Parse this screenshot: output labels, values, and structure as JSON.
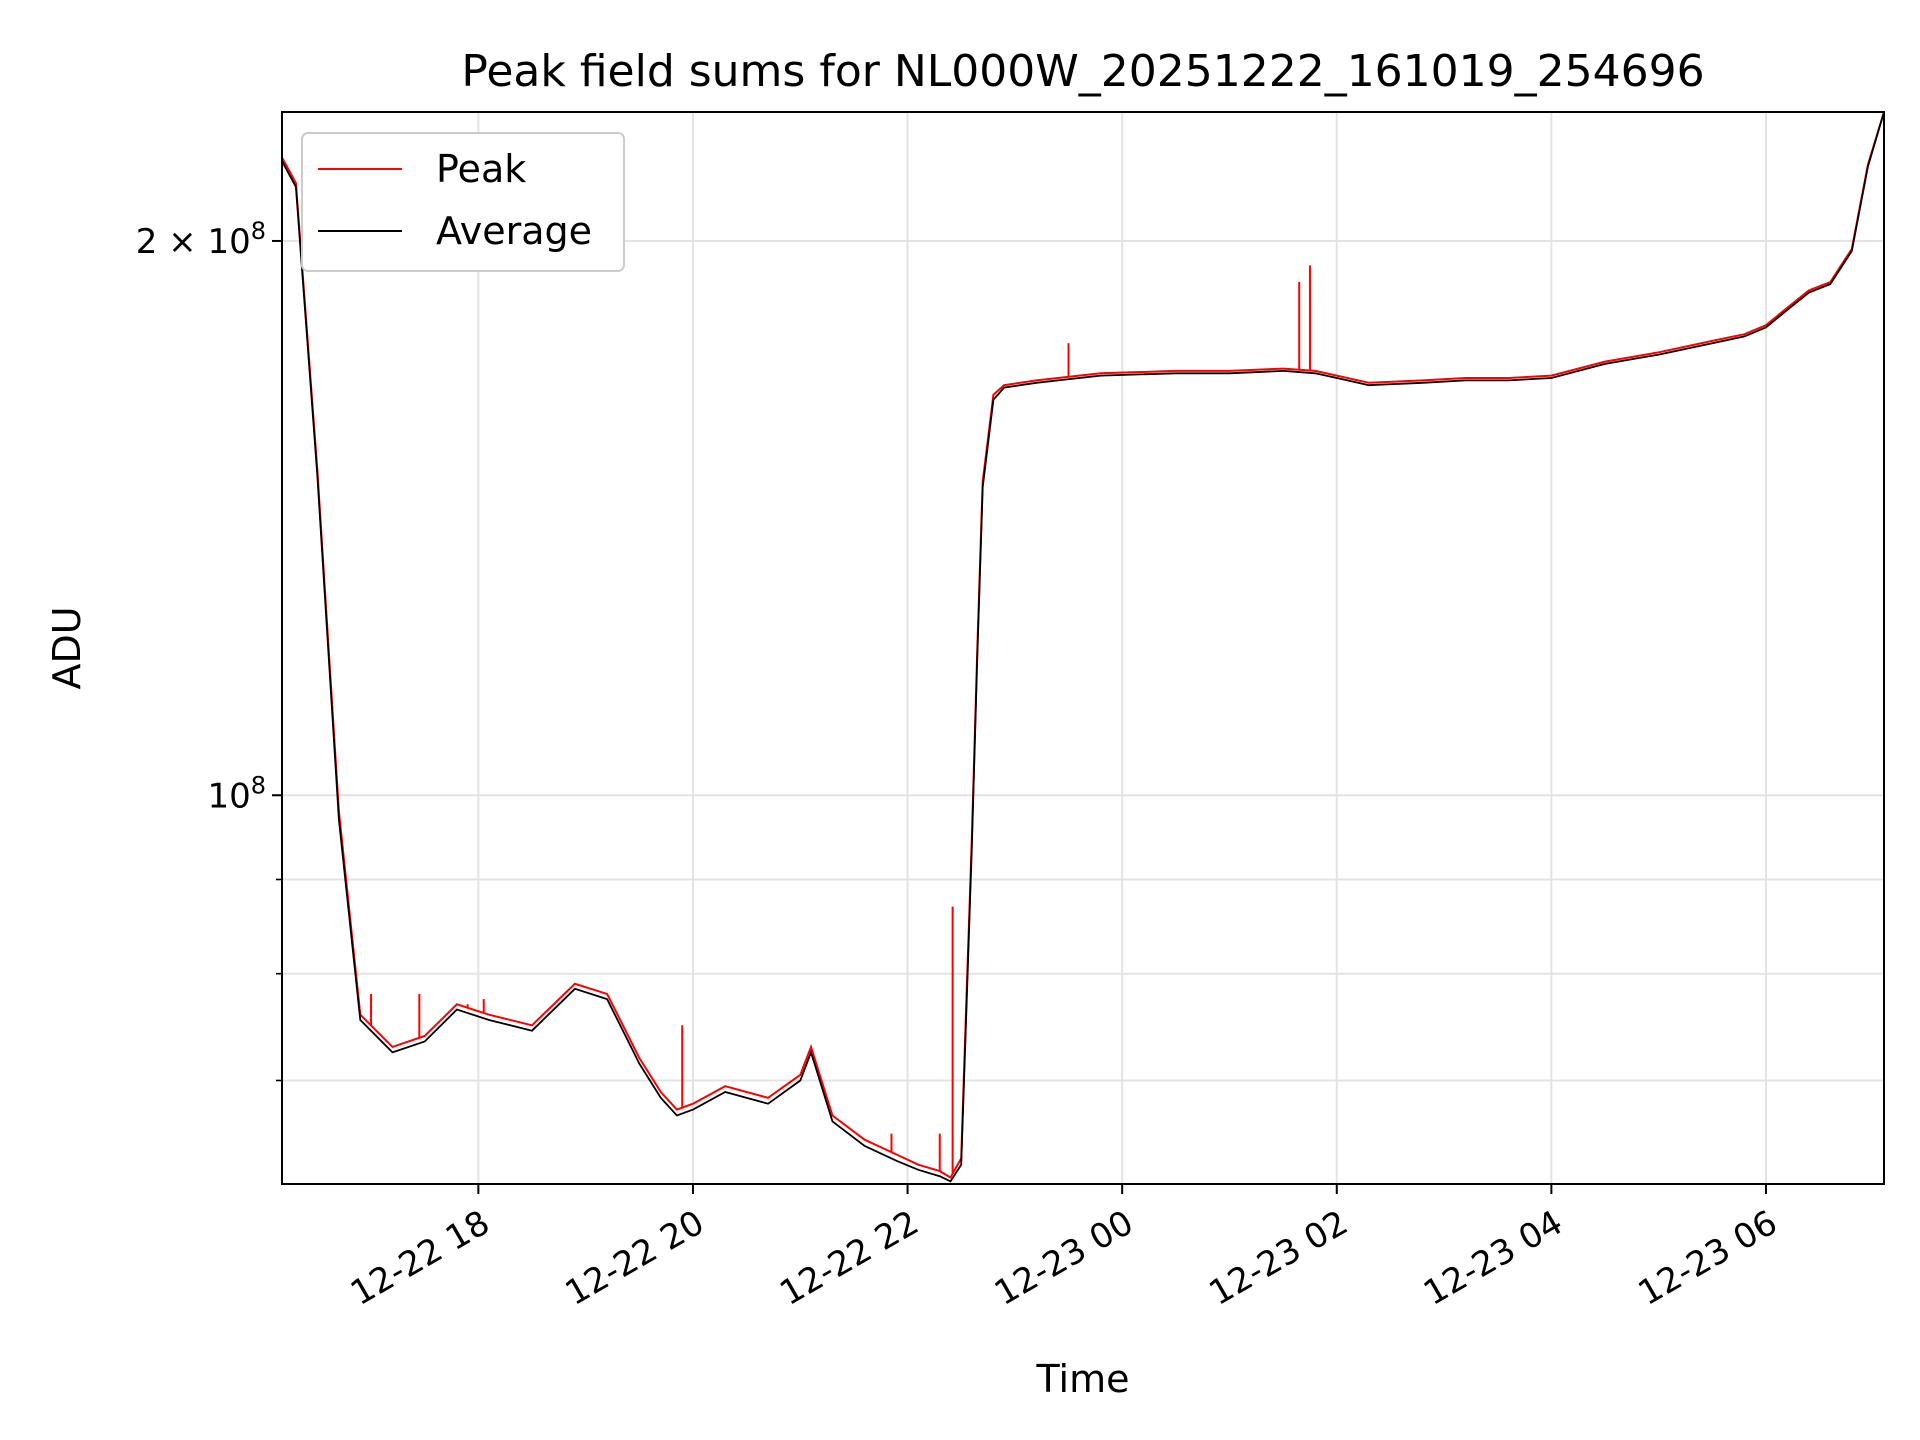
{
  "chart_data": {
    "type": "line",
    "title": "Peak field sums for NL000W_20251222_161019_254696",
    "xlabel": "Time",
    "ylabel": "ADU",
    "yscale": "log",
    "ylim": [
      61500000,
      235000000
    ],
    "xlim_hours": [
      16.17,
      31.1
    ],
    "x_units": "hours since 2025-12-22 00:00",
    "grid": true,
    "legend_position": "top-left",
    "x_ticks": [
      {
        "value": 18,
        "label": "12-22 18"
      },
      {
        "value": 20,
        "label": "12-22 20"
      },
      {
        "value": 22,
        "label": "12-22 22"
      },
      {
        "value": 24,
        "label": "12-23 00"
      },
      {
        "value": 26,
        "label": "12-23 02"
      },
      {
        "value": 28,
        "label": "12-23 04"
      },
      {
        "value": 30,
        "label": "12-23 06"
      }
    ],
    "y_major_ticks": [
      {
        "value": 100000000,
        "label": "10",
        "exp": "8",
        "prefix": ""
      },
      {
        "value": 200000000,
        "label": "2 × 10",
        "exp": "8",
        "prefix": ""
      }
    ],
    "y_minor_ticks": [
      70000000,
      80000000,
      90000000
    ],
    "series": [
      {
        "name": "Peak",
        "color": "#ff0000",
        "x": [
          16.17,
          16.3,
          16.5,
          16.7,
          16.9,
          17.2,
          17.5,
          17.8,
          18.1,
          18.5,
          18.9,
          19.2,
          19.5,
          19.7,
          19.85,
          20.0,
          20.3,
          20.7,
          21.0,
          21.1,
          21.3,
          21.6,
          21.9,
          22.1,
          22.3,
          22.4,
          22.5,
          22.55,
          22.6,
          22.65,
          22.7,
          22.8,
          22.9,
          23.2,
          23.8,
          24.5,
          25.0,
          25.5,
          25.8,
          26.0,
          26.3,
          26.8,
          27.2,
          27.6,
          28.0,
          28.5,
          29.0,
          29.5,
          29.8,
          30.0,
          30.2,
          30.4,
          30.6,
          30.8,
          30.95,
          31.1
        ],
        "y": [
          222000000,
          215000000,
          150000000,
          98000000,
          76000000,
          73000000,
          74000000,
          77000000,
          76000000,
          75000000,
          79000000,
          78000000,
          72000000,
          69000000,
          67500000,
          68000000,
          69500000,
          68500000,
          70500000,
          73000000,
          67000000,
          65000000,
          63800000,
          63000000,
          62500000,
          62000000,
          63500000,
          78000000,
          95000000,
          120000000,
          148000000,
          165000000,
          167000000,
          168000000,
          169500000,
          170000000,
          170000000,
          170500000,
          170000000,
          169000000,
          167500000,
          168000000,
          168500000,
          168500000,
          169000000,
          172000000,
          174000000,
          176500000,
          178000000,
          180000000,
          184000000,
          188000000,
          190000000,
          198000000,
          220000000,
          235000000
        ],
        "spikes": [
          {
            "x": 17.0,
            "y": 78000000
          },
          {
            "x": 17.45,
            "y": 78000000
          },
          {
            "x": 17.9,
            "y": 77000000
          },
          {
            "x": 18.05,
            "y": 77500000
          },
          {
            "x": 19.9,
            "y": 75000000
          },
          {
            "x": 21.85,
            "y": 65500000
          },
          {
            "x": 22.3,
            "y": 65500000
          },
          {
            "x": 22.42,
            "y": 87000000
          },
          {
            "x": 23.5,
            "y": 176000000
          },
          {
            "x": 25.65,
            "y": 190000000
          },
          {
            "x": 25.75,
            "y": 194000000
          }
        ]
      },
      {
        "name": "Average",
        "color": "#000000",
        "x": [
          16.17,
          16.3,
          16.5,
          16.7,
          16.9,
          17.2,
          17.5,
          17.8,
          18.1,
          18.5,
          18.9,
          19.2,
          19.5,
          19.7,
          19.85,
          20.0,
          20.3,
          20.7,
          21.0,
          21.1,
          21.3,
          21.6,
          21.9,
          22.1,
          22.3,
          22.4,
          22.5,
          22.55,
          22.6,
          22.65,
          22.7,
          22.8,
          22.9,
          23.2,
          23.8,
          24.5,
          25.0,
          25.5,
          25.8,
          26.0,
          26.3,
          26.8,
          27.2,
          27.6,
          28.0,
          28.5,
          29.0,
          29.5,
          29.8,
          30.0,
          30.2,
          30.4,
          30.6,
          30.8,
          30.95,
          31.1
        ],
        "y": [
          221000000,
          214000000,
          149000000,
          97000000,
          75500000,
          72500000,
          73500000,
          76500000,
          75500000,
          74500000,
          78500000,
          77500000,
          71500000,
          68500000,
          67000000,
          67500000,
          69000000,
          68000000,
          70000000,
          72500000,
          66500000,
          64500000,
          63300000,
          62600000,
          62100000,
          61700000,
          63000000,
          77000000,
          94000000,
          119000000,
          147000000,
          164000000,
          166500000,
          167500000,
          169000000,
          169500000,
          169500000,
          170000000,
          169500000,
          168500000,
          167000000,
          167500000,
          168000000,
          168000000,
          168500000,
          171500000,
          173500000,
          176000000,
          177500000,
          179500000,
          183500000,
          187500000,
          189500000,
          197500000,
          219500000,
          235000000
        ]
      }
    ]
  }
}
